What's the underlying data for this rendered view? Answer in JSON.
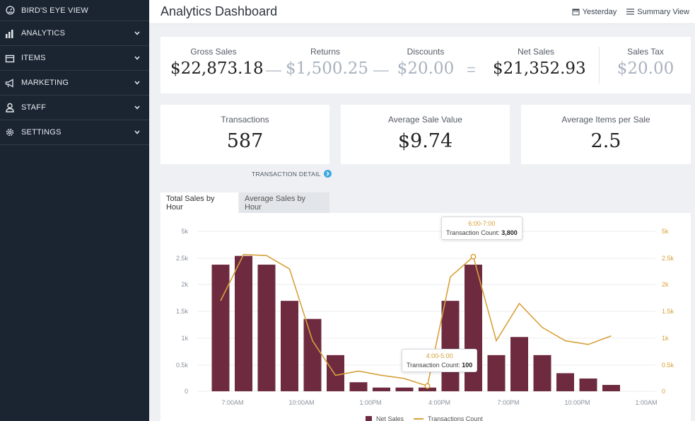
{
  "sidebar": {
    "items": [
      {
        "label": "BIRD'S EYE VIEW",
        "icon": "gauge-icon"
      },
      {
        "label": "ANALYTICS",
        "icon": "bar-chart-icon"
      },
      {
        "label": "ITEMS",
        "icon": "items-icon"
      },
      {
        "label": "MARKETING",
        "icon": "megaphone-icon"
      },
      {
        "label": "STAFF",
        "icon": "person-icon"
      },
      {
        "label": "SETTINGS",
        "icon": "gear-icon"
      }
    ]
  },
  "header": {
    "title": "Analytics Dashboard",
    "date_label": "Yesterday",
    "view_label": "Summary View"
  },
  "summary": {
    "gross_label": "Gross Sales",
    "gross_value": "$22,873.18",
    "returns_label": "Returns",
    "returns_value": "$1,500.25",
    "discounts_label": "Discounts",
    "discounts_value": "$20.00",
    "net_label": "Net Sales",
    "net_value": "$21,352.93",
    "tax_label": "Sales Tax",
    "tax_value": "$20.00",
    "minus": "—",
    "equals": "="
  },
  "metrics": {
    "transactions_label": "Transactions",
    "transactions_value": "587",
    "avg_sale_label": "Average Sale Value",
    "avg_sale_value": "$9.74",
    "avg_items_label": "Average Items per Sale",
    "avg_items_value": "2.5"
  },
  "transaction_detail_label": "TRANSACTION DETAIL",
  "tabs": [
    "Total Sales by Hour",
    "Average Sales by Hour"
  ],
  "tooltips": [
    {
      "title": "6:00-7:00",
      "prefix": "Transaction Count:",
      "value": "3,800"
    },
    {
      "title": "4:00-5:00",
      "prefix": "Transaction Count:",
      "value": "100"
    }
  ],
  "legend": {
    "bars": "Net Sales",
    "line": "Transactions Count"
  },
  "colors": {
    "bar": "#6e2b40",
    "line": "#d7a13a",
    "nav_bg": "#1b2532"
  },
  "chart_data": {
    "type": "bar",
    "ylim": [
      0,
      5000
    ],
    "y_ticks": [
      "0",
      "0.5k",
      "1k",
      "1.5k",
      "2k",
      "2.5k",
      "5k"
    ],
    "y_right_ticks": [
      "0",
      "0.5k",
      "1k",
      "1.5k",
      "2k",
      "2.5k",
      "5k"
    ],
    "x_tick_labels": [
      "7:00AM",
      "10:00AM",
      "1:00PM",
      "4:00PM",
      "7:00PM",
      "10:00PM",
      "1:00AM"
    ],
    "series": [
      {
        "name": "Net Sales",
        "type": "bar",
        "values": [
          2380,
          2720,
          2380,
          1700,
          1360,
          680,
          170,
          70,
          70,
          70,
          1700,
          2380,
          680,
          1020,
          680,
          340,
          240,
          120
        ]
      },
      {
        "name": "Transactions Count",
        "type": "line",
        "values": [
          1700,
          2850,
          2750,
          2300,
          950,
          300,
          380,
          300,
          240,
          100,
          2150,
          2650,
          950,
          1650,
          1200,
          950,
          880,
          1040
        ]
      }
    ]
  }
}
